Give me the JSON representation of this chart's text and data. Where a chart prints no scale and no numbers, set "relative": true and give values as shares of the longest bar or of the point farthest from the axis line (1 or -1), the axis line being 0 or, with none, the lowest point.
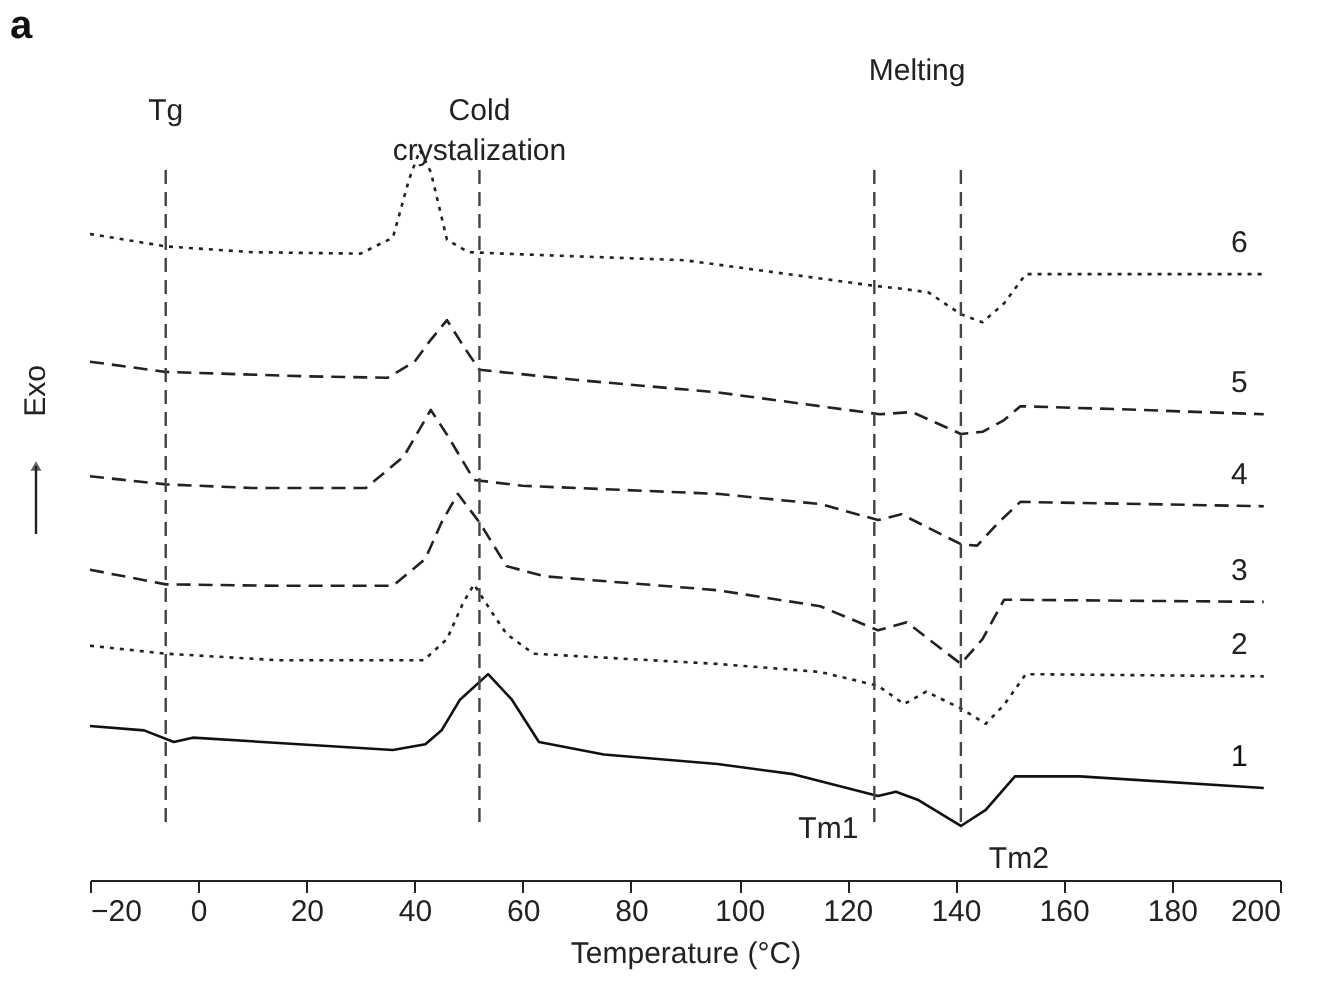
{
  "chart_data": {
    "type": "line",
    "relative": true,
    "xlabel": "Temperature (°C)",
    "ylabel": "Exo",
    "xlim": [
      -20,
      200
    ],
    "xticks": [
      -20,
      0,
      20,
      40,
      60,
      80,
      100,
      120,
      140,
      160,
      180,
      200
    ],
    "grid": false,
    "tick_labels": "x",
    "marker": "none",
    "annotations": [
      "a",
      "Melting",
      {
        "text": "Tm1",
        "x": 125,
        "y": 0.115
      },
      {
        "text": "Tm2",
        "x": 141,
        "y": 0.074
      }
    ],
    "ref_lines": [
      {
        "axis": "x",
        "value": -6,
        "label": "Tg",
        "color": "#444444",
        "line_style": "dashed"
      },
      {
        "axis": "x",
        "value": 52,
        "label": "Cold crystalization",
        "color": "#444444",
        "line_style": "dashed"
      },
      {
        "axis": "x",
        "value": 125,
        "color": "#444444",
        "line_style": "dashed"
      },
      {
        "axis": "x",
        "value": 141,
        "color": "#444444",
        "line_style": "dashed"
      }
    ],
    "series": [
      {
        "name": "6",
        "color": "#222222",
        "line_style": "dotted",
        "x": [
          -20,
          -6,
          10,
          30,
          36,
          39,
          41,
          43,
          46,
          50,
          60,
          90,
          125,
          130,
          135,
          141,
          145,
          149,
          153,
          175,
          197
        ],
        "values": [
          0.885,
          0.868,
          0.86,
          0.858,
          0.88,
          0.96,
          1.0,
          0.97,
          0.877,
          0.86,
          0.857,
          0.849,
          0.814,
          0.81,
          0.805,
          0.775,
          0.764,
          0.79,
          0.83,
          0.83,
          0.83
        ]
      },
      {
        "name": "5",
        "color": "#222222",
        "line_style": "dashed",
        "x": [
          -20,
          -6,
          20,
          35,
          40,
          43,
          46,
          49.5,
          52,
          70,
          96,
          126,
          132,
          141,
          145,
          149,
          152,
          170,
          197
        ],
        "values": [
          0.71,
          0.696,
          0.69,
          0.688,
          0.71,
          0.74,
          0.767,
          0.726,
          0.699,
          0.685,
          0.668,
          0.638,
          0.641,
          0.611,
          0.614,
          0.63,
          0.649,
          0.645,
          0.638
        ]
      },
      {
        "name": "4",
        "color": "#222222",
        "line_style": "dashed",
        "x": [
          -20,
          -6,
          10,
          31,
          38,
          43,
          46,
          51,
          60,
          96,
          115,
          125.7,
          130,
          141,
          144,
          148,
          152,
          197
        ],
        "values": [
          0.553,
          0.542,
          0.537,
          0.537,
          0.58,
          0.644,
          0.61,
          0.548,
          0.54,
          0.529,
          0.515,
          0.493,
          0.501,
          0.46,
          0.458,
          0.49,
          0.518,
          0.512
        ]
      },
      {
        "name": "3",
        "color": "#222222",
        "line_style": "dashed",
        "x": [
          -20,
          -6,
          15,
          36,
          42,
          45,
          48,
          52,
          57,
          64,
          96,
          115,
          125.7,
          131,
          141,
          145,
          149,
          197
        ],
        "values": [
          0.425,
          0.405,
          0.403,
          0.403,
          0.44,
          0.49,
          0.529,
          0.49,
          0.43,
          0.416,
          0.397,
          0.375,
          0.342,
          0.353,
          0.296,
          0.33,
          0.384,
          0.381
        ]
      },
      {
        "name": "2",
        "color": "#222222",
        "line_style": "dotted",
        "x": [
          -20,
          -6,
          15,
          41.7,
          46,
          49,
          51,
          54,
          57,
          62,
          96,
          115,
          125.7,
          130.5,
          134.6,
          141,
          145.6,
          149,
          153,
          197
        ],
        "values": [
          0.321,
          0.31,
          0.301,
          0.301,
          0.33,
          0.38,
          0.405,
          0.37,
          0.337,
          0.31,
          0.296,
          0.285,
          0.266,
          0.241,
          0.258,
          0.235,
          0.214,
          0.24,
          0.282,
          0.279
        ]
      },
      {
        "name": "1",
        "color": "#111111",
        "line_style": "solid",
        "x": [
          -20,
          -10,
          -4.5,
          -1,
          36,
          42,
          45,
          48.4,
          53.6,
          58,
          63,
          75,
          96,
          110,
          125.7,
          129,
          133,
          141,
          145.6,
          151,
          163,
          197
        ],
        "values": [
          0.211,
          0.205,
          0.189,
          0.195,
          0.178,
          0.186,
          0.205,
          0.247,
          0.282,
          0.247,
          0.189,
          0.172,
          0.159,
          0.145,
          0.115,
          0.121,
          0.11,
          0.074,
          0.096,
          0.142,
          0.142,
          0.126
        ]
      }
    ]
  }
}
